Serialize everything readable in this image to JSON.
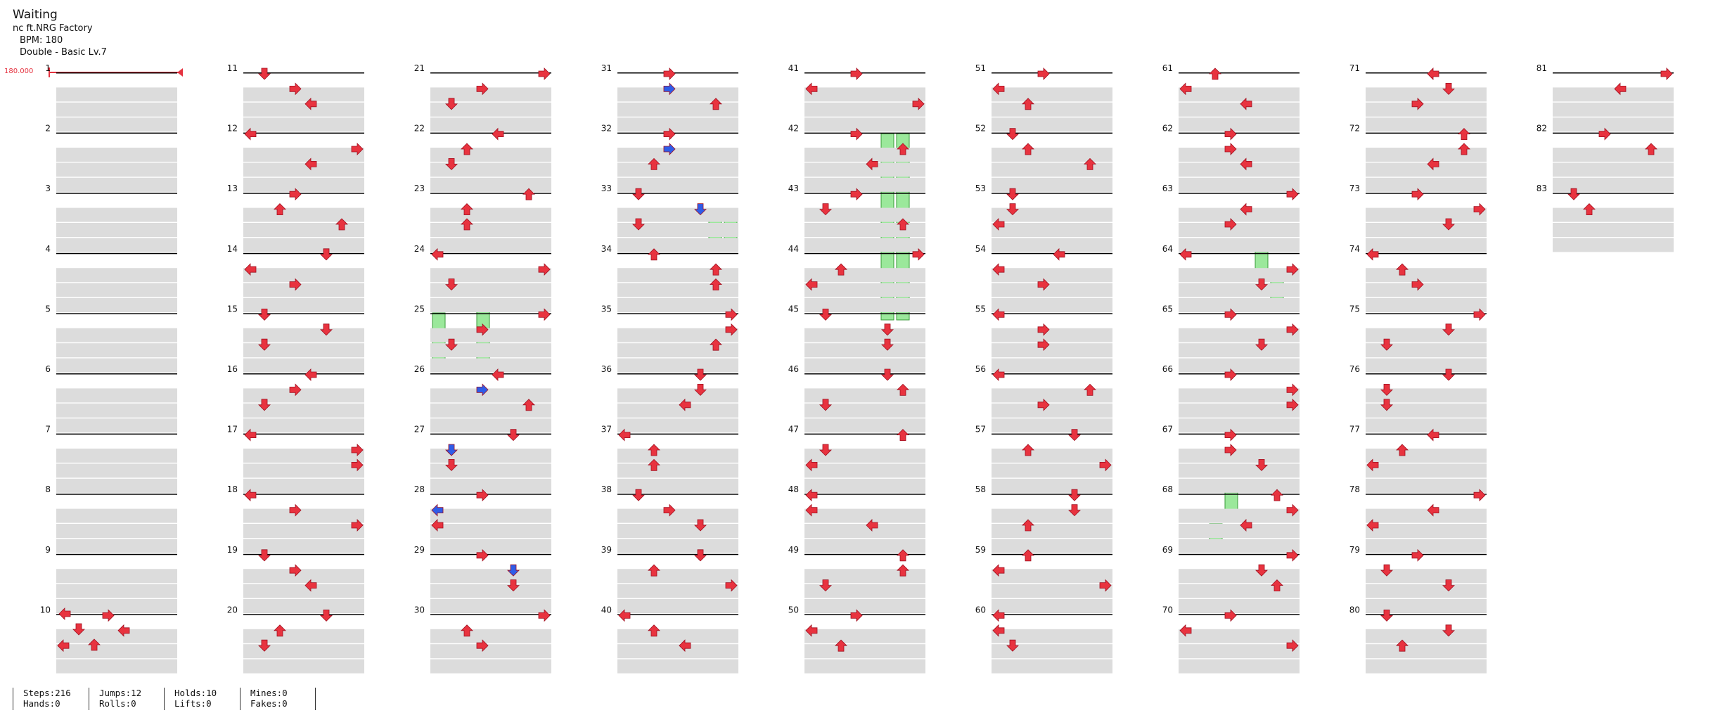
{
  "song": {
    "title": "Waiting",
    "artist": "nc ft.NRG Factory",
    "bpm_label": "BPM: 180",
    "difficulty_label": "Double - Basic Lv.7"
  },
  "bpm_marker": "180.000",
  "colors": {
    "arrow": "#e8333f",
    "mine_arrow": "#2f5ce8",
    "hold": "#9be89b",
    "measure_line": "#000000",
    "beat_band": "#dcdcdc"
  },
  "footer": {
    "steps": "Steps:216",
    "hands": "Hands:0",
    "jumps": "Jumps:12",
    "rolls": "Rolls:0",
    "holds": "Holds:10",
    "lifts": "Lifts:0",
    "mines": "Mines:0",
    "fakes": "Fakes:0"
  },
  "chart": {
    "measures": 83,
    "measures_per_column": 10,
    "arrows": [
      [
        "11",
        [
          [
            0,
            "U"
          ],
          [
            1,
            "R"
          ]
        ]
      ],
      [
        "21",
        [
          [
            4,
            "R"
          ],
          [
            5,
            "L"
          ]
        ],
        [
          [
            4,
            "R"
          ]
        ]
      ],
      [
        "31",
        [
          [
            4,
            "L"
          ],
          [
            4,
            "LB"
          ]
        ],
        [
          [
            4,
            "L"
          ],
          [
            5,
            "D"
          ]
        ]
      ],
      [
        "41",
        [
          [
            6,
            "U"
          ]
        ],
        [
          [
            7,
            "R"
          ],
          [
            6,
            "U"
          ]
        ]
      ],
      [
        "51",
        [
          [
            1,
            "D"
          ]
        ],
        [
          [
            1,
            "D"
          ]
        ]
      ],
      [
        "61",
        [
          [
            3,
            "U"
          ]
        ],
        [
          [
            2,
            "D"
          ],
          [
            5,
            "L"
          ]
        ],
        [
          [
            4,
            "R"
          ]
        ]
      ],
      [
        "71",
        [
          [
            0,
            "L"
          ]
        ],
        [
          [
            2,
            "U"
          ]
        ],
        [
          [
            3,
            "R"
          ]
        ]
      ],
      [
        "81",
        [
          [
            0,
            "L"
          ],
          [
            3,
            "R"
          ]
        ],
        [
          [
            0,
            "L"
          ],
          [
            1,
            "D"
          ]
        ]
      ]
    ],
    "column_labels": [
      [
        "1",
        "2",
        "3",
        "4",
        "5",
        "6",
        "7",
        "8",
        "9",
        "10"
      ],
      [
        "11",
        "12",
        "13",
        "14",
        "15",
        "16",
        "17",
        "18",
        "19",
        "20"
      ],
      [
        "21",
        "22",
        "23",
        "24",
        "25",
        "26",
        "27",
        "28",
        "29",
        "30"
      ],
      [
        "31",
        "32",
        "33",
        "34",
        "35",
        "36",
        "37",
        "38",
        "39",
        "40"
      ],
      [
        "41",
        "42",
        "43",
        "44",
        "45",
        "46",
        "47",
        "48",
        "49",
        "50"
      ],
      [
        "51",
        "52",
        "53",
        "54",
        "55",
        "56",
        "57",
        "58",
        "59",
        "60"
      ],
      [
        "61",
        "62",
        "63",
        "64",
        "65",
        "66",
        "67",
        "68",
        "69",
        "70"
      ],
      [
        "71",
        "72",
        "73",
        "74",
        "75",
        "76",
        "77",
        "78",
        "79",
        "80"
      ],
      [
        "81",
        "82",
        "83"
      ]
    ]
  }
}
